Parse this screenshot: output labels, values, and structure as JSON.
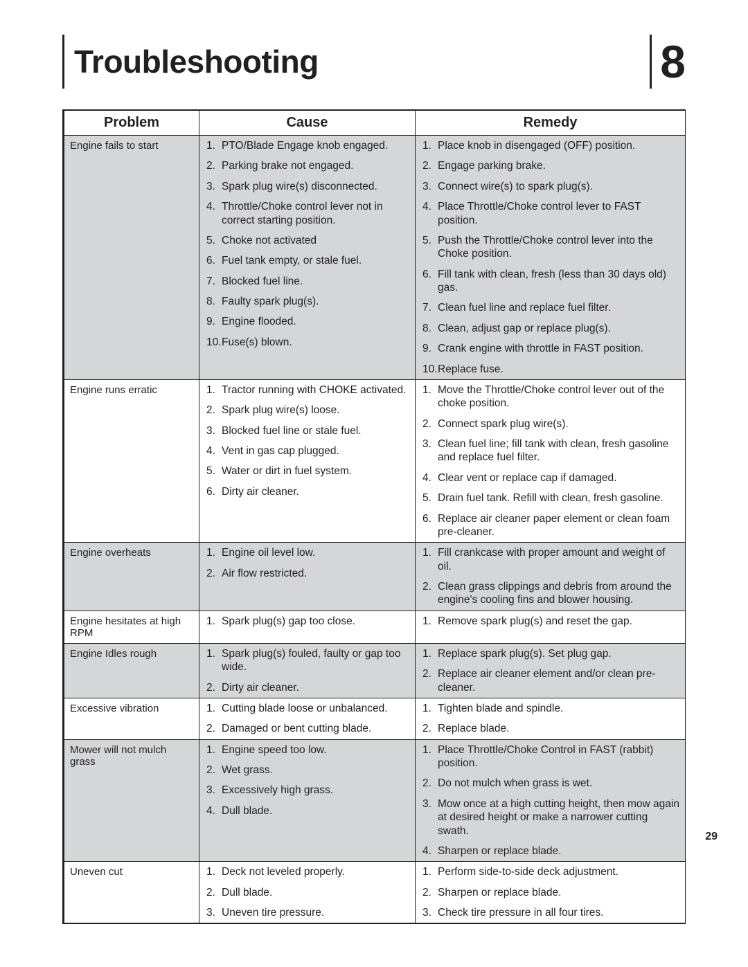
{
  "header": {
    "title": "Troubleshooting",
    "section_number": "8"
  },
  "page_number": "29",
  "columns": [
    "Problem",
    "Cause",
    "Remedy"
  ],
  "rows": [
    {
      "shaded": true,
      "problem": "Engine fails to start",
      "causes": [
        "PTO/Blade Engage knob engaged.",
        "Parking brake not engaged.",
        "Spark plug wire(s) disconnected.",
        "Throttle/Choke control lever not in correct starting position.",
        "Choke not activated",
        "Fuel tank empty, or stale fuel.",
        "Blocked fuel line.",
        "Faulty spark plug(s).",
        "Engine flooded.",
        "Fuse(s) blown."
      ],
      "remedies": [
        "Place knob in disengaged (OFF) position.",
        "Engage parking brake.",
        "Connect wire(s) to spark plug(s).",
        "Place Throttle/Choke control lever to FAST position.",
        "Push the Throttle/Choke control lever into the Choke position.",
        "Fill tank with clean, fresh (less than 30 days old) gas.",
        "Clean fuel line and replace fuel filter.",
        "Clean, adjust gap or replace plug(s).",
        "Crank engine with throttle in FAST position.",
        "Replace fuse."
      ]
    },
    {
      "shaded": false,
      "problem": "Engine runs erratic",
      "causes": [
        "Tractor running with CHOKE activated.",
        "Spark plug wire(s) loose.",
        "Blocked fuel line or stale fuel.",
        "Vent in gas cap plugged.",
        "Water or dirt in fuel system.",
        "Dirty air cleaner."
      ],
      "remedies": [
        "Move the Throttle/Choke control lever out of the choke position.",
        "Connect spark plug wire(s).",
        "Clean fuel line; fill tank with clean, fresh gasoline and replace fuel filter.",
        "Clear vent or replace cap if damaged.",
        "Drain fuel tank. Refill with clean, fresh gasoline.",
        "Replace air cleaner paper element or clean foam pre-cleaner."
      ]
    },
    {
      "shaded": true,
      "problem": "Engine overheats",
      "causes": [
        "Engine oil level low.",
        "Air flow restricted."
      ],
      "remedies": [
        "Fill crankcase with proper amount and weight of oil.",
        "Clean grass clippings and debris from around the engine's cooling fins and blower housing."
      ]
    },
    {
      "shaded": false,
      "problem": "Engine hesitates at high RPM",
      "causes": [
        "Spark plug(s) gap too close."
      ],
      "remedies": [
        "Remove spark plug(s) and reset the gap."
      ]
    },
    {
      "shaded": true,
      "problem": "Engine Idles rough",
      "causes": [
        "Spark plug(s) fouled, faulty or gap too wide.",
        "Dirty air cleaner."
      ],
      "remedies": [
        "Replace spark plug(s). Set plug gap.",
        "Replace air cleaner element and/or clean pre-cleaner."
      ]
    },
    {
      "shaded": false,
      "problem": "Excessive vibration",
      "causes": [
        "Cutting blade loose or unbalanced.",
        "Damaged or bent cutting blade."
      ],
      "remedies": [
        "Tighten blade and spindle.",
        "Replace blade."
      ]
    },
    {
      "shaded": true,
      "problem": "Mower will not mulch grass",
      "causes": [
        "Engine speed too low.",
        "Wet grass.",
        "Excessively high grass.",
        "Dull blade."
      ],
      "remedies": [
        "Place Throttle/Choke Control in FAST (rabbit) position.",
        "Do not mulch when grass is wet.",
        "Mow once at a high cutting height, then mow again at desired height or make a narrower cutting swath.",
        "Sharpen or replace blade."
      ]
    },
    {
      "shaded": false,
      "problem": "Uneven cut",
      "causes": [
        "Deck not leveled properly.",
        "Dull blade.",
        "Uneven tire pressure."
      ],
      "remedies": [
        "Perform side-to-side deck adjustment.",
        "Sharpen or replace blade.",
        "Check tire pressure in all four tires."
      ]
    }
  ]
}
